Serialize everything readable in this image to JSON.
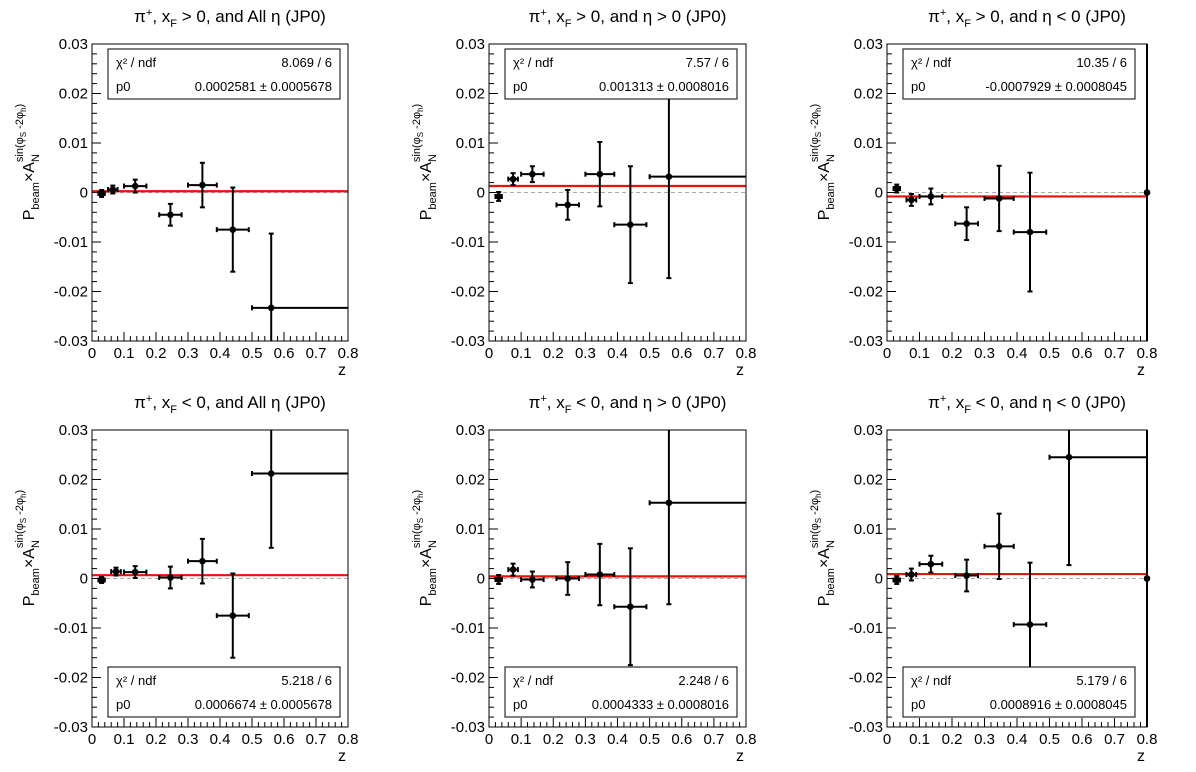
{
  "figure": {
    "ylabel_main": "P",
    "ylabel_sub": "beam",
    "ylabel_times": "×A",
    "ylabel_A_sub": "N",
    "ylabel_sup": "sin(φ",
    "ylabel_sup_s": "S",
    "ylabel_sup_mid": " -2φ",
    "ylabel_sup_h": "h",
    "ylabel_sup_end": ")",
    "xlabel": "z",
    "stat_header_label": "χ² / ndf",
    "stat_param_label": "p0"
  },
  "chart_data": [
    {
      "type": "scatter",
      "title": "π⁺, x_F > 0, and All η (JP0)",
      "title_parts": [
        "π",
        "+",
        ", x",
        "F",
        " > 0, and All η (JP0)"
      ],
      "xlabel": "z",
      "ylabel": "P_beam×A_N^{sin(φ_S-2φ_h)}",
      "xlim": [
        0,
        0.8
      ],
      "ylim": [
        -0.03,
        0.03
      ],
      "xticks": [
        "0",
        "0.1",
        "0.2",
        "0.3",
        "0.4",
        "0.5",
        "0.6",
        "0.7",
        "0.8"
      ],
      "yticks": [
        "-0.03",
        "-0.02",
        "-0.01",
        "0",
        "0.01",
        "0.02",
        "0.03"
      ],
      "stat_box": "top",
      "chi2_ndf": "8.069 / 6",
      "p0_text": "0.0002581 ± 0.0005678",
      "fit_p0": 0.0002581,
      "points": [
        {
          "x": 0.03,
          "y": -0.0002,
          "xerr": [
            0.01,
            0.01
          ],
          "yerr": 0.0007
        },
        {
          "x": 0.065,
          "y": 0.0006,
          "xerr": [
            0.015,
            0.015
          ],
          "yerr": 0.0008
        },
        {
          "x": 0.135,
          "y": 0.0013,
          "xerr": [
            0.035,
            0.035
          ],
          "yerr": 0.0013
        },
        {
          "x": 0.245,
          "y": -0.0045,
          "xerr": [
            0.035,
            0.035
          ],
          "yerr": 0.0022
        },
        {
          "x": 0.345,
          "y": 0.0015,
          "xerr": [
            0.045,
            0.045
          ],
          "yerr": 0.0045
        },
        {
          "x": 0.44,
          "y": -0.0075,
          "xerr": [
            0.05,
            0.05
          ],
          "yerr": 0.0085
        },
        {
          "x": 0.56,
          "y": -0.0233,
          "xerr": [
            0.06,
            0.24
          ],
          "yerr": 0.015
        }
      ]
    },
    {
      "type": "scatter",
      "title": "π⁺, x_F > 0, and η > 0 (JP0)",
      "title_parts": [
        "π",
        "+",
        ", x",
        "F",
        " > 0, and η > 0 (JP0)"
      ],
      "xlabel": "z",
      "ylabel": "P_beam×A_N^{sin(φ_S-2φ_h)}",
      "xlim": [
        0,
        0.8
      ],
      "ylim": [
        -0.03,
        0.03
      ],
      "xticks": [
        "0",
        "0.1",
        "0.2",
        "0.3",
        "0.4",
        "0.5",
        "0.6",
        "0.7",
        "0.8"
      ],
      "yticks": [
        "-0.03",
        "-0.02",
        "-0.01",
        "0",
        "0.01",
        "0.02",
        "0.03"
      ],
      "stat_box": "top",
      "chi2_ndf": "7.57 / 6",
      "p0_text": "0.001313 ± 0.0008016",
      "fit_p0": 0.001313,
      "points": [
        {
          "x": 0.03,
          "y": -0.0008,
          "xerr": [
            0.01,
            0.01
          ],
          "yerr": 0.0009
        },
        {
          "x": 0.075,
          "y": 0.0027,
          "xerr": [
            0.015,
            0.015
          ],
          "yerr": 0.0012
        },
        {
          "x": 0.135,
          "y": 0.0037,
          "xerr": [
            0.035,
            0.035
          ],
          "yerr": 0.0016
        },
        {
          "x": 0.245,
          "y": -0.0025,
          "xerr": [
            0.035,
            0.035
          ],
          "yerr": 0.003
        },
        {
          "x": 0.345,
          "y": 0.0037,
          "xerr": [
            0.045,
            0.045
          ],
          "yerr": 0.0065
        },
        {
          "x": 0.44,
          "y": -0.0065,
          "xerr": [
            0.05,
            0.05
          ],
          "yerr": 0.0118
        },
        {
          "x": 0.56,
          "y": 0.0032,
          "xerr": [
            0.06,
            0.24
          ],
          "yerr": 0.0205
        }
      ]
    },
    {
      "type": "scatter",
      "title": "π⁺, x_F > 0, and η < 0 (JP0)",
      "title_parts": [
        "π",
        "+",
        ", x",
        "F",
        " > 0, and η < 0 (JP0)"
      ],
      "xlabel": "z",
      "ylabel": "P_beam×A_N^{sin(φ_S-2φ_h)}",
      "xlim": [
        0,
        0.8
      ],
      "ylim": [
        -0.03,
        0.03
      ],
      "xticks": [
        "0",
        "0.1",
        "0.2",
        "0.3",
        "0.4",
        "0.5",
        "0.6",
        "0.7",
        "0.8"
      ],
      "yticks": [
        "-0.03",
        "-0.02",
        "-0.01",
        "0",
        "0.01",
        "0.02",
        "0.03"
      ],
      "stat_box": "top",
      "chi2_ndf": "10.35 / 6",
      "p0_text": "-0.0007929 ± 0.0008045",
      "fit_p0": -0.0007929,
      "points": [
        {
          "x": 0.03,
          "y": 0.0008,
          "xerr": [
            0.01,
            0.01
          ],
          "yerr": 0.0008
        },
        {
          "x": 0.075,
          "y": -0.0015,
          "xerr": [
            0.015,
            0.015
          ],
          "yerr": 0.0012
        },
        {
          "x": 0.135,
          "y": -0.0008,
          "xerr": [
            0.035,
            0.035
          ],
          "yerr": 0.0016
        },
        {
          "x": 0.245,
          "y": -0.0063,
          "xerr": [
            0.035,
            0.035
          ],
          "yerr": 0.0033
        },
        {
          "x": 0.345,
          "y": -0.0012,
          "xerr": [
            0.045,
            0.045
          ],
          "yerr": 0.0066
        },
        {
          "x": 0.44,
          "y": -0.008,
          "xerr": [
            0.05,
            0.05
          ],
          "yerr": 0.012
        },
        {
          "x": 0.8,
          "y": 0.0,
          "xerr": [
            0,
            0
          ],
          "yerr": 0.03
        }
      ]
    },
    {
      "type": "scatter",
      "title": "π⁺, x_F < 0, and All η (JP0)",
      "title_parts": [
        "π",
        "+",
        ", x",
        "F",
        " < 0, and All η (JP0)"
      ],
      "xlabel": "z",
      "ylabel": "P_beam×A_N^{sin(φ_S-2φ_h)}",
      "xlim": [
        0,
        0.8
      ],
      "ylim": [
        -0.03,
        0.03
      ],
      "xticks": [
        "0",
        "0.1",
        "0.2",
        "0.3",
        "0.4",
        "0.5",
        "0.6",
        "0.7",
        "0.8"
      ],
      "yticks": [
        "-0.03",
        "-0.02",
        "-0.01",
        "0",
        "0.01",
        "0.02",
        "0.03"
      ],
      "stat_box": "bottom",
      "chi2_ndf": "5.218 / 6",
      "p0_text": "0.0006674 ± 0.0005678",
      "fit_p0": 0.0006674,
      "points": [
        {
          "x": 0.03,
          "y": -0.0003,
          "xerr": [
            0.01,
            0.01
          ],
          "yerr": 0.0006
        },
        {
          "x": 0.075,
          "y": 0.0014,
          "xerr": [
            0.015,
            0.015
          ],
          "yerr": 0.0008
        },
        {
          "x": 0.135,
          "y": 0.0013,
          "xerr": [
            0.035,
            0.035
          ],
          "yerr": 0.0012
        },
        {
          "x": 0.245,
          "y": 0.0002,
          "xerr": [
            0.035,
            0.035
          ],
          "yerr": 0.0022
        },
        {
          "x": 0.345,
          "y": 0.0035,
          "xerr": [
            0.045,
            0.045
          ],
          "yerr": 0.0045
        },
        {
          "x": 0.44,
          "y": -0.0075,
          "xerr": [
            0.05,
            0.05
          ],
          "yerr": 0.0085
        },
        {
          "x": 0.56,
          "y": 0.0212,
          "xerr": [
            0.06,
            0.24
          ],
          "yerr": 0.015
        }
      ]
    },
    {
      "type": "scatter",
      "title": "π⁺, x_F < 0, and η > 0 (JP0)",
      "title_parts": [
        "π",
        "+",
        ", x",
        "F",
        " < 0, and η > 0 (JP0)"
      ],
      "xlabel": "z",
      "ylabel": "P_beam×A_N^{sin(φ_S-2φ_h)}",
      "xlim": [
        0,
        0.8
      ],
      "ylim": [
        -0.03,
        0.03
      ],
      "xticks": [
        "0",
        "0.1",
        "0.2",
        "0.3",
        "0.4",
        "0.5",
        "0.6",
        "0.7",
        "0.8"
      ],
      "yticks": [
        "-0.03",
        "-0.02",
        "-0.01",
        "0",
        "0.01",
        "0.02",
        "0.03"
      ],
      "stat_box": "bottom",
      "chi2_ndf": "2.248 / 6",
      "p0_text": "0.0004333 ± 0.0008016",
      "fit_p0": 0.0004333,
      "points": [
        {
          "x": 0.03,
          "y": -0.0002,
          "xerr": [
            0.01,
            0.01
          ],
          "yerr": 0.0009
        },
        {
          "x": 0.075,
          "y": 0.0018,
          "xerr": [
            0.015,
            0.015
          ],
          "yerr": 0.0012
        },
        {
          "x": 0.135,
          "y": -0.0002,
          "xerr": [
            0.035,
            0.035
          ],
          "yerr": 0.0016
        },
        {
          "x": 0.245,
          "y": 0.0,
          "xerr": [
            0.035,
            0.035
          ],
          "yerr": 0.0033
        },
        {
          "x": 0.345,
          "y": 0.0008,
          "xerr": [
            0.045,
            0.045
          ],
          "yerr": 0.0062
        },
        {
          "x": 0.44,
          "y": -0.0057,
          "xerr": [
            0.05,
            0.05
          ],
          "yerr": 0.0118
        },
        {
          "x": 0.56,
          "y": 0.0153,
          "xerr": [
            0.06,
            0.24
          ],
          "yerr": 0.0205
        }
      ]
    },
    {
      "type": "scatter",
      "title": "π⁺, x_F < 0, and η < 0 (JP0)",
      "title_parts": [
        "π",
        "+",
        ", x",
        "F",
        " < 0, and η < 0 (JP0)"
      ],
      "xlabel": "z",
      "ylabel": "P_beam×A_N^{sin(φ_S-2φ_h)}",
      "xlim": [
        0,
        0.8
      ],
      "ylim": [
        -0.03,
        0.03
      ],
      "xticks": [
        "0",
        "0.1",
        "0.2",
        "0.3",
        "0.4",
        "0.5",
        "0.6",
        "0.7",
        "0.8"
      ],
      "yticks": [
        "-0.03",
        "-0.02",
        "-0.01",
        "0",
        "0.01",
        "0.02",
        "0.03"
      ],
      "stat_box": "bottom",
      "chi2_ndf": "5.179 / 6",
      "p0_text": "0.0008916 ± 0.0008045",
      "fit_p0": 0.0008916,
      "points": [
        {
          "x": 0.03,
          "y": -0.0003,
          "xerr": [
            0.01,
            0.01
          ],
          "yerr": 0.0008
        },
        {
          "x": 0.075,
          "y": 0.0008,
          "xerr": [
            0.015,
            0.015
          ],
          "yerr": 0.0012
        },
        {
          "x": 0.135,
          "y": 0.0029,
          "xerr": [
            0.035,
            0.035
          ],
          "yerr": 0.0017
        },
        {
          "x": 0.245,
          "y": 0.0006,
          "xerr": [
            0.035,
            0.035
          ],
          "yerr": 0.0032
        },
        {
          "x": 0.345,
          "y": 0.0065,
          "xerr": [
            0.045,
            0.045
          ],
          "yerr": 0.0066
        },
        {
          "x": 0.44,
          "y": -0.0093,
          "xerr": [
            0.05,
            0.05
          ],
          "yerr": 0.0125
        },
        {
          "x": 0.56,
          "y": 0.0245,
          "xerr": [
            0.06,
            0.24
          ],
          "yerr": 0.0218
        },
        {
          "x": 0.8,
          "y": 0.0,
          "xerr": [
            0,
            0
          ],
          "yerr": 0.03
        }
      ]
    }
  ],
  "colors": {
    "fit_line": "#e8120c",
    "zero_line": "#aaaaaa",
    "points": "#000000"
  }
}
